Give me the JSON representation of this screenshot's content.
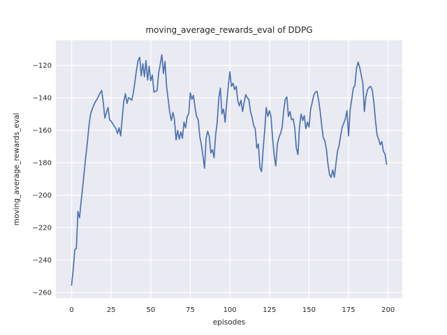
{
  "chart_data": {
    "type": "line",
    "title": "moving_average_rewards_eval of DDPG",
    "xlabel": "episodes",
    "ylabel": "moving_average_rewards_eval",
    "legend": null,
    "grid": true,
    "style": "seaborn-darkgrid",
    "axes_bg_color": "#EAEAF2",
    "grid_color": "#FFFFFF",
    "line_color": "#4C72B0",
    "line_width": 1.7,
    "xlim": [
      -9.95,
      208.95
    ],
    "ylim": [
      -263.5,
      -104.5
    ],
    "x_ticks": [
      0,
      25,
      50,
      75,
      100,
      125,
      150,
      175,
      200
    ],
    "x_tick_labels": [
      "0",
      "25",
      "50",
      "75",
      "100",
      "125",
      "150",
      "175",
      "200"
    ],
    "y_ticks": [
      -120,
      -140,
      -160,
      -180,
      -200,
      -220,
      -240,
      -260
    ],
    "y_tick_labels": [
      "−120",
      "−140",
      "−160",
      "−180",
      "−200",
      "−220",
      "−240",
      "−260"
    ],
    "x_start": 0,
    "x_step": 1,
    "values": [
      -255.5,
      -246,
      -233.5,
      -233,
      -210,
      -214,
      -204,
      -195,
      -185,
      -176,
      -167,
      -157,
      -150,
      -147,
      -144.5,
      -142.5,
      -141,
      -139,
      -137,
      -135.5,
      -143,
      -152.5,
      -149,
      -146,
      -153.5,
      -154.5,
      -156,
      -157.5,
      -159,
      -162,
      -158.5,
      -163.5,
      -152,
      -142,
      -137.5,
      -143.5,
      -140,
      -140.5,
      -141.5,
      -137,
      -130,
      -123,
      -117,
      -115,
      -126.5,
      -119,
      -127,
      -117,
      -129,
      -120.5,
      -129.5,
      -126,
      -136.5,
      -136,
      -135.5,
      -124.5,
      -119.5,
      -113.5,
      -125,
      -117.5,
      -133,
      -141,
      -149,
      -154,
      -149,
      -153.5,
      -166,
      -160,
      -165.5,
      -161,
      -165,
      -155,
      -158.5,
      -151.5,
      -150,
      -137,
      -141,
      -138.5,
      -146,
      -151.5,
      -153.5,
      -164,
      -169,
      -176,
      -183.5,
      -165,
      -160.5,
      -164,
      -174,
      -172,
      -177,
      -163,
      -155,
      -140,
      -134,
      -150,
      -147,
      -155,
      -143,
      -133,
      -124,
      -133,
      -131,
      -135,
      -133,
      -142,
      -145,
      -141.5,
      -148.5,
      -143,
      -138,
      -140,
      -141,
      -148.5,
      -152,
      -157,
      -159,
      -171,
      -168.5,
      -183,
      -185.5,
      -172,
      -160,
      -146,
      -151.5,
      -148,
      -151.5,
      -165,
      -175.5,
      -182,
      -168.5,
      -164.5,
      -162,
      -158.5,
      -148,
      -141,
      -139.5,
      -151.5,
      -148.5,
      -153.5,
      -153,
      -158.5,
      -171,
      -175,
      -158,
      -150,
      -154,
      -151,
      -159,
      -155,
      -158,
      -147,
      -143,
      -138.5,
      -136.5,
      -136,
      -141,
      -148,
      -157,
      -164.5,
      -166.5,
      -172,
      -181,
      -187.5,
      -189,
      -184.5,
      -189,
      -181,
      -173,
      -169.5,
      -163.5,
      -158,
      -155.5,
      -153,
      -148,
      -163.5,
      -147.5,
      -141,
      -134,
      -132.5,
      -122,
      -118,
      -121,
      -126,
      -131,
      -148.5,
      -139,
      -135,
      -133.5,
      -133,
      -135.5,
      -143,
      -154,
      -163,
      -165.5,
      -169,
      -167,
      -173,
      -174.5,
      -181
    ]
  }
}
